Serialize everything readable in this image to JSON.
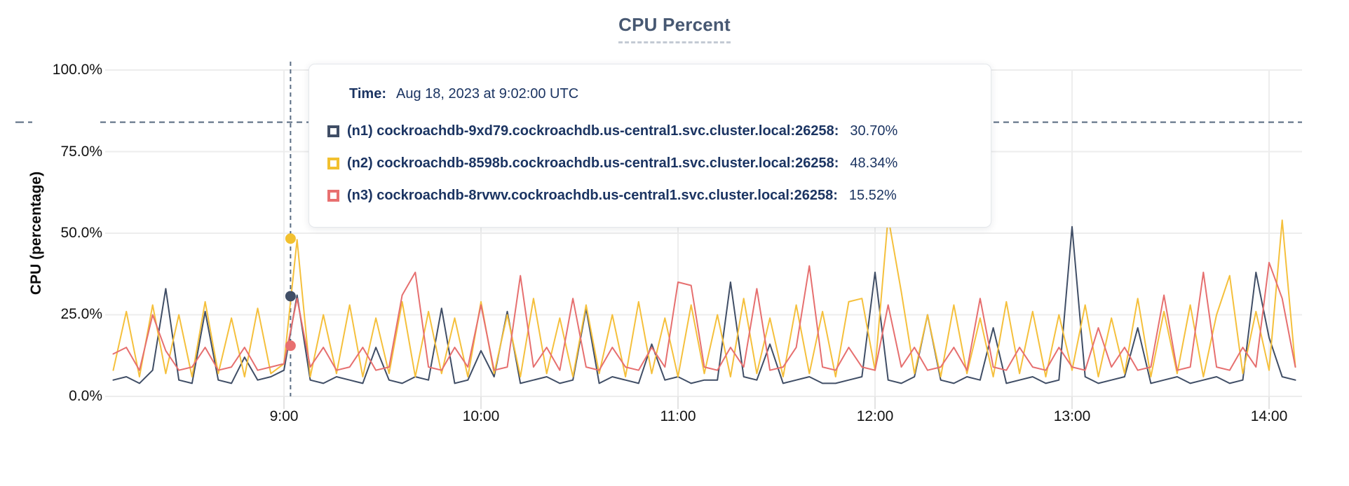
{
  "header": {
    "title": "CPU Percent"
  },
  "y_axis": {
    "label": "CPU (percentage)",
    "ticks": [
      "100.0%",
      "75.0%",
      "50.0%",
      "25.0%",
      "0.0%"
    ]
  },
  "x_axis": {
    "ticks": [
      "9:00",
      "10:00",
      "11:00",
      "12:00",
      "13:00",
      "14:00"
    ]
  },
  "tooltip": {
    "time_label": "Time:",
    "time_value": "Aug 18, 2023 at 9:02:00 UTC",
    "series": [
      {
        "label": "(n1) cockroachdb-9xd79.cockroachdb.us-central1.svc.cluster.local:26258:",
        "value": "30.70%",
        "color": "#404e66"
      },
      {
        "label": "(n2) cockroachdb-8598b.cockroachdb.us-central1.svc.cluster.local:26258:",
        "value": "48.34%",
        "color": "#f2c02f"
      },
      {
        "label": "(n3) cockroachdb-8rvwv.cockroachdb.us-central1.svc.cluster.local:26258:",
        "value": "15.52%",
        "color": "#e87070"
      }
    ]
  },
  "colors": {
    "series_n1": "#404e66",
    "series_n2": "#f5c03c",
    "series_n3": "#e66f6f",
    "title": "#475872",
    "tooltip_text": "#1b3462",
    "gridline": "#ededed",
    "threshold_line": "#54677e",
    "crosshair": "#5b6d84"
  },
  "chart_data": {
    "type": "line",
    "title": "CPU Percent",
    "xlabel": "",
    "ylabel": "CPU (percentage)",
    "ylim": [
      0,
      100
    ],
    "grid": true,
    "legend_position": "hover-tooltip",
    "y_tick_values": [
      0,
      25,
      50,
      75,
      100
    ],
    "y_tick_labels": [
      "0.0%",
      "25.0%",
      "50.0%",
      "75.0%",
      "100.0%"
    ],
    "x_tick_labels": [
      "9:00",
      "10:00",
      "11:00",
      "12:00",
      "13:00",
      "14:00"
    ],
    "x_tick_minutes": [
      540,
      600,
      660,
      720,
      780,
      840
    ],
    "x_range_time": [
      "8:08",
      "14:08"
    ],
    "x_start_minutes": 488,
    "x_step_minutes": 4,
    "threshold": {
      "type": "horizontal_dashed_line",
      "value_pct": 84
    },
    "crosshair": {
      "time": "Aug 18, 2023 at 9:02:00 UTC",
      "time_minutes": 542,
      "points": [
        {
          "series": "n1",
          "value": 30.7,
          "color": "#404e66"
        },
        {
          "series": "n2",
          "value": 48.34,
          "color": "#f2c02f"
        },
        {
          "series": "n3",
          "value": 15.52,
          "color": "#e87070"
        }
      ]
    },
    "series": [
      {
        "id": "n1",
        "name": "(n1) cockroachdb-9xd79.cockroachdb.us-central1.svc.cluster.local:26258",
        "color": "#404e66",
        "values": [
          5,
          6,
          4,
          8,
          33,
          5,
          4,
          26,
          5,
          4,
          12,
          5,
          6,
          8,
          31,
          5,
          4,
          6,
          5,
          4,
          15,
          5,
          4,
          6,
          5,
          27,
          4,
          5,
          14,
          6,
          26,
          4,
          5,
          6,
          4,
          5,
          27,
          4,
          6,
          5,
          4,
          16,
          5,
          6,
          4,
          5,
          5,
          35,
          6,
          5,
          16,
          4,
          5,
          6,
          4,
          4,
          5,
          6,
          38,
          5,
          4,
          6,
          25,
          5,
          4,
          6,
          5,
          21,
          4,
          5,
          6,
          4,
          5,
          52,
          6,
          4,
          5,
          6,
          21,
          4,
          5,
          6,
          4,
          5,
          6,
          4,
          5,
          38,
          18,
          6,
          5
        ]
      },
      {
        "id": "n2",
        "name": "(n2) cockroachdb-8598b.cockroachdb.us-central1.svc.cluster.local:26258",
        "color": "#f5c03c",
        "values": [
          8,
          26,
          6,
          28,
          7,
          25,
          6,
          29,
          7,
          24,
          6,
          27,
          7,
          10,
          48,
          6,
          25,
          7,
          28,
          6,
          24,
          7,
          29,
          6,
          26,
          7,
          24,
          6,
          29,
          7,
          25,
          6,
          30,
          7,
          24,
          6,
          28,
          7,
          25,
          6,
          29,
          7,
          24,
          6,
          28,
          7,
          25,
          6,
          30,
          7,
          24,
          6,
          28,
          7,
          26,
          6,
          29,
          30,
          8,
          55,
          32,
          7,
          25,
          6,
          28,
          7,
          24,
          6,
          29,
          7,
          26,
          6,
          25,
          8,
          28,
          6,
          24,
          7,
          30,
          6,
          26,
          7,
          28,
          6,
          25,
          37,
          7,
          26,
          8,
          54,
          9
        ]
      },
      {
        "id": "n3",
        "name": "(n3) cockroachdb-8rvwv.cockroachdb.us-central1.svc.cluster.local:26258",
        "color": "#e66f6f",
        "values": [
          13,
          15,
          8,
          25,
          14,
          8,
          9,
          15,
          8,
          9,
          15,
          8,
          9,
          10,
          30,
          9,
          15,
          8,
          9,
          15,
          8,
          9,
          31,
          38,
          9,
          8,
          15,
          9,
          28,
          8,
          9,
          37,
          9,
          15,
          8,
          30,
          9,
          8,
          15,
          9,
          8,
          15,
          9,
          35,
          34,
          9,
          8,
          15,
          9,
          33,
          8,
          9,
          15,
          40,
          9,
          8,
          15,
          9,
          8,
          28,
          9,
          15,
          8,
          9,
          15,
          8,
          30,
          9,
          8,
          15,
          9,
          8,
          15,
          9,
          8,
          21,
          9,
          15,
          8,
          9,
          31,
          8,
          9,
          38,
          9,
          8,
          15,
          9,
          41,
          30,
          9
        ]
      }
    ]
  }
}
